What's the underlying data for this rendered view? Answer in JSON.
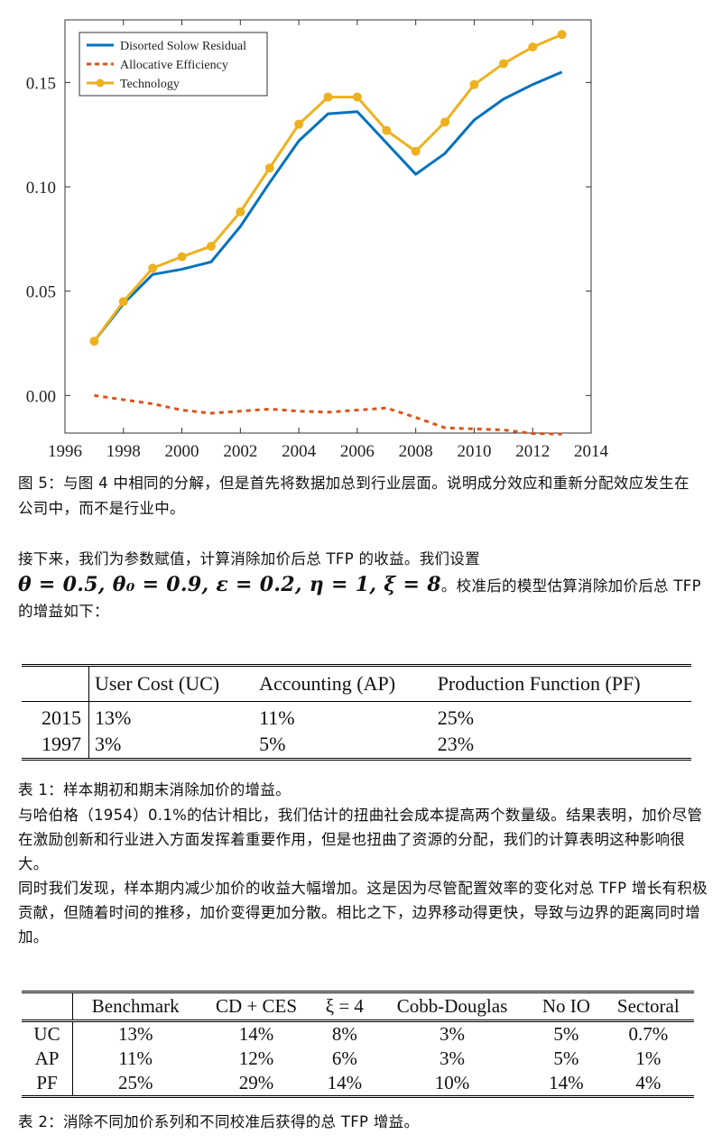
{
  "chart_data": {
    "type": "line",
    "x_ticks": [
      "1996",
      "1998",
      "2000",
      "2002",
      "2004",
      "2006",
      "2008",
      "2010",
      "2012",
      "2014"
    ],
    "y_ticks": [
      "0.00",
      "0.05",
      "0.10",
      "0.15"
    ],
    "xlim": [
      1996,
      2014
    ],
    "ylim": [
      -0.018,
      0.18
    ],
    "grid": false,
    "legend_position": "top-left",
    "x": [
      1997,
      1998,
      1999,
      2000,
      2001,
      2002,
      2003,
      2004,
      2005,
      2006,
      2007,
      2008,
      2009,
      2010,
      2011,
      2012,
      2013
    ],
    "series": [
      {
        "name": "Disorted Solow Residual",
        "style": "solid",
        "color": "#0072BD",
        "values": [
          0.026,
          0.044,
          0.058,
          0.0605,
          0.064,
          0.081,
          0.102,
          0.122,
          0.135,
          0.136,
          0.121,
          0.106,
          0.116,
          0.132,
          0.142,
          0.149,
          0.155
        ]
      },
      {
        "name": "Allocative Efficiency",
        "style": "dashed",
        "color": "#D95319",
        "values": [
          0.0,
          -0.002,
          -0.004,
          -0.007,
          -0.0085,
          -0.0075,
          -0.0065,
          -0.0075,
          -0.008,
          -0.007,
          -0.006,
          -0.0105,
          -0.0155,
          -0.016,
          -0.0165,
          -0.0182,
          -0.0185
        ]
      },
      {
        "name": "Technology",
        "style": "solid-markers",
        "color": "#EDB120",
        "values": [
          0.026,
          0.045,
          0.061,
          0.0665,
          0.0715,
          0.088,
          0.109,
          0.13,
          0.143,
          0.143,
          0.127,
          0.117,
          0.131,
          0.149,
          0.159,
          0.167,
          0.173
        ]
      }
    ]
  },
  "caption1": "图 5：与图 4 中相同的分解，但是首先将数据加总到行业层面。说明成分效应和重新分配效应发生在公司中，而不是行业中。",
  "para1": {
    "text_before": "接下来，我们为参数赋值，计算消除加价后总 TFP 的收益。我们设置",
    "math": "θ = 0.5, θ₀ = 0.9, ε = 0.2, η = 1, ξ = 8",
    "text_after": "。校准后的模型估算消除加价后总 TFP 的增益如下："
  },
  "table1": {
    "headers": [
      "",
      "User Cost (UC)",
      "Accounting (AP)",
      "Production Function (PF)"
    ],
    "rows": [
      [
        "2015",
        "13%",
        "11%",
        "25%"
      ],
      [
        "1997",
        "3%",
        "5%",
        "23%"
      ]
    ]
  },
  "caption2": "表 1：样本期初和期末消除加价的增益。",
  "para2": {
    "p1": "与哈伯格（1954）0.1%的估计相比，我们估计的扭曲社会成本提高两个数量级。结果表明，加价尽管在激励创新和行业进入方面发挥着重要作用，但是也扭曲了资源的分配，我们的计算表明这种影响很大。",
    "p2": "同时我们发现，样本期内减少加价的收益大幅增加。这是因为尽管配置效率的变化对总 TFP 增长有积极贡献，但随着时间的推移，加价变得更加分散。相比之下，边界移动得更快，导致与边界的距离同时增加。"
  },
  "table2": {
    "headers": [
      "",
      "Benchmark",
      "CD + CES",
      "ξ = 4",
      "Cobb-Douglas",
      "No IO",
      "Sectoral"
    ],
    "rows": [
      [
        "UC",
        "13%",
        "14%",
        "8%",
        "3%",
        "5%",
        "0.7%"
      ],
      [
        "AP",
        "11%",
        "12%",
        "6%",
        "3%",
        "5%",
        "1%"
      ],
      [
        "PF",
        "25%",
        "29%",
        "14%",
        "10%",
        "14%",
        "4%"
      ]
    ]
  },
  "caption3": "表 2：消除不同加价系列和不同校准后获得的总 TFP 增益。"
}
